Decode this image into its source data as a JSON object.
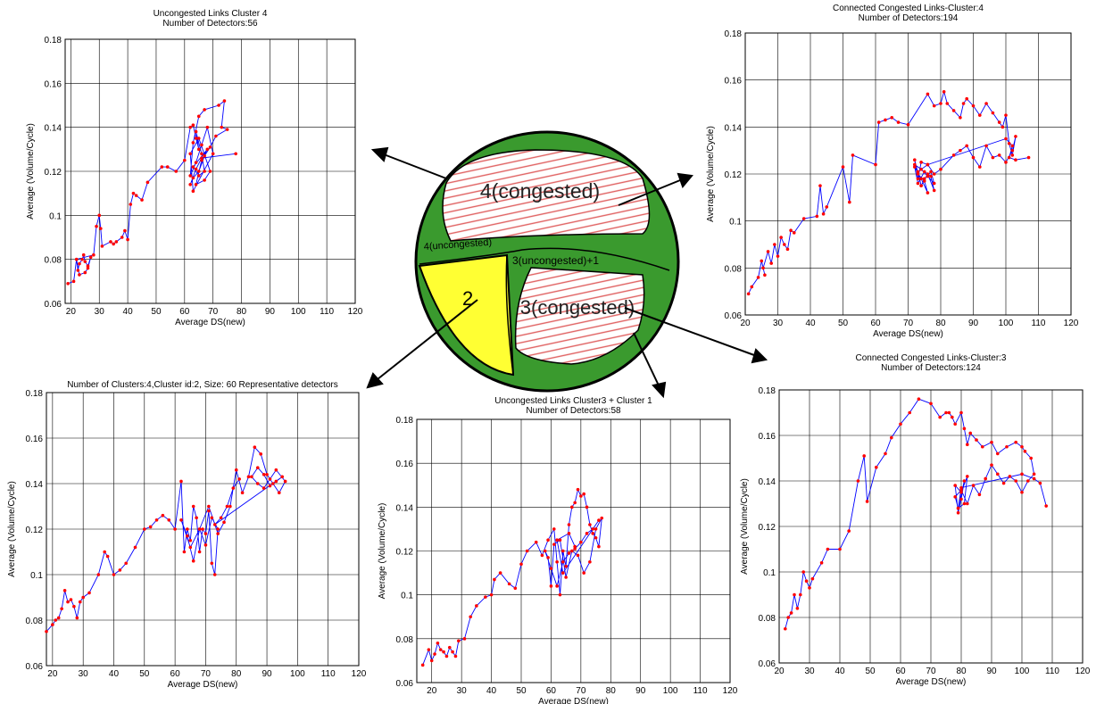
{
  "map": {
    "regions": [
      {
        "label": "4(congested)",
        "color": "#ffffff"
      },
      {
        "label": "4(uncongested)",
        "color": "#3a9a2e"
      },
      {
        "label": "3(uncongested)+1",
        "color": "#3a9a2e"
      },
      {
        "label": "2",
        "color": "#ffff33"
      },
      {
        "label": "3(congested)",
        "color": "#ffffff"
      }
    ],
    "hatch_color": "#e06060"
  },
  "colors": {
    "line": "#0000ff",
    "marker": "#ff0000",
    "grid": "#000000"
  },
  "chart_data": [
    {
      "type": "line",
      "title": "Uncongested Links Cluster 4",
      "subtitle": "Number of Detectors:56",
      "xlabel": "Average DS(new)",
      "ylabel": "Average (Volume/Cycle)",
      "xlim": [
        18,
        120
      ],
      "ylim": [
        0.06,
        0.18
      ],
      "xticks": [
        20,
        30,
        40,
        50,
        60,
        70,
        80,
        90,
        100,
        110,
        120
      ],
      "yticks": [
        0.06,
        0.08,
        0.1,
        0.12,
        0.14,
        0.16,
        0.18
      ],
      "grid": true,
      "x": [
        19,
        21,
        22,
        22.5,
        23,
        24,
        24.5,
        25,
        26,
        27,
        26,
        25,
        23,
        22,
        28,
        29,
        30,
        30.5,
        31,
        34,
        35,
        36,
        38,
        39,
        40,
        41,
        42,
        43,
        45,
        47,
        52,
        54,
        57,
        60,
        62,
        63,
        64,
        65,
        64,
        66,
        67,
        65,
        63,
        68,
        66,
        64,
        67,
        69,
        65,
        62,
        63,
        70,
        68,
        66,
        64,
        62,
        63,
        65,
        67,
        72,
        74,
        73,
        75,
        71,
        69,
        67,
        65,
        63,
        62,
        64,
        66,
        78
      ],
      "y": [
        0.069,
        0.07,
        0.08,
        0.075,
        0.078,
        0.08,
        0.082,
        0.079,
        0.077,
        0.081,
        0.076,
        0.074,
        0.073,
        0.08,
        0.082,
        0.095,
        0.1,
        0.094,
        0.086,
        0.088,
        0.087,
        0.088,
        0.09,
        0.093,
        0.089,
        0.105,
        0.11,
        0.109,
        0.107,
        0.115,
        0.122,
        0.122,
        0.12,
        0.125,
        0.14,
        0.141,
        0.135,
        0.13,
        0.138,
        0.128,
        0.12,
        0.118,
        0.122,
        0.13,
        0.125,
        0.114,
        0.116,
        0.12,
        0.135,
        0.128,
        0.111,
        0.128,
        0.14,
        0.132,
        0.124,
        0.118,
        0.133,
        0.145,
        0.148,
        0.15,
        0.152,
        0.14,
        0.139,
        0.136,
        0.131,
        0.127,
        0.12,
        0.117,
        0.114,
        0.121,
        0.126,
        0.128
      ]
    },
    {
      "type": "line",
      "title": "Connected Congested Links-Cluster:4",
      "subtitle": "Number of Detectors:194",
      "xlabel": "Average DS(new)",
      "ylabel": "Average (Volume/Cycle)",
      "xlim": [
        20,
        120
      ],
      "ylim": [
        0.06,
        0.18
      ],
      "xticks": [
        20,
        30,
        40,
        50,
        60,
        70,
        80,
        90,
        100,
        110,
        120
      ],
      "yticks": [
        0.06,
        0.08,
        0.1,
        0.12,
        0.14,
        0.16,
        0.18
      ],
      "grid": true,
      "x": [
        21,
        22,
        24,
        25,
        26,
        25.5,
        27,
        28,
        29,
        30,
        31,
        32,
        33,
        34,
        35,
        38,
        42,
        43,
        44,
        45,
        50,
        52,
        53,
        60,
        61,
        63,
        65,
        67,
        70,
        76,
        78,
        80,
        81,
        82,
        84,
        86,
        87,
        88,
        90,
        92,
        94,
        96,
        98,
        99,
        100,
        101,
        102,
        103,
        102,
        100,
        98,
        96,
        94,
        92,
        90,
        88,
        86,
        84,
        80,
        78,
        76,
        74,
        73,
        72,
        74,
        76,
        78,
        77,
        75,
        73,
        72,
        74,
        76,
        75,
        73,
        72,
        74,
        76,
        78,
        77,
        75,
        74,
        73,
        76,
        100,
        102,
        101,
        103,
        107
      ],
      "y": [
        0.069,
        0.072,
        0.076,
        0.083,
        0.077,
        0.08,
        0.087,
        0.082,
        0.09,
        0.085,
        0.093,
        0.09,
        0.088,
        0.096,
        0.095,
        0.101,
        0.102,
        0.115,
        0.103,
        0.106,
        0.123,
        0.108,
        0.128,
        0.124,
        0.142,
        0.143,
        0.144,
        0.142,
        0.141,
        0.154,
        0.149,
        0.15,
        0.155,
        0.15,
        0.147,
        0.144,
        0.15,
        0.152,
        0.149,
        0.145,
        0.15,
        0.146,
        0.142,
        0.14,
        0.145,
        0.133,
        0.128,
        0.136,
        0.13,
        0.125,
        0.128,
        0.127,
        0.132,
        0.123,
        0.127,
        0.132,
        0.13,
        0.128,
        0.122,
        0.12,
        0.124,
        0.125,
        0.118,
        0.126,
        0.115,
        0.12,
        0.113,
        0.119,
        0.121,
        0.116,
        0.123,
        0.118,
        0.112,
        0.117,
        0.12,
        0.124,
        0.122,
        0.119,
        0.116,
        0.121,
        0.118,
        0.115,
        0.121,
        0.124,
        0.135,
        0.132,
        0.127,
        0.126,
        0.127
      ]
    },
    {
      "type": "line",
      "title": "Number of Clusters:4,Cluster id:2, Size: 60 Representative detectors",
      "subtitle": "",
      "xlabel": "Average DS(new)",
      "ylabel": "Average (Volume/Cycle)",
      "xlim": [
        18,
        120
      ],
      "ylim": [
        0.06,
        0.18
      ],
      "xticks": [
        20,
        30,
        40,
        50,
        60,
        70,
        80,
        90,
        100,
        110,
        120
      ],
      "yticks": [
        0.06,
        0.08,
        0.1,
        0.12,
        0.14,
        0.16,
        0.18
      ],
      "grid": true,
      "x": [
        18,
        20,
        21,
        22,
        23,
        24,
        25,
        26,
        27,
        28,
        29,
        30,
        32,
        35,
        37,
        38,
        40,
        42,
        44,
        47,
        50,
        52,
        54,
        56,
        58,
        60,
        62,
        63,
        64,
        65,
        66,
        67,
        68,
        69,
        70,
        71,
        72,
        73,
        74,
        72,
        70,
        68,
        66,
        64,
        62,
        65,
        68,
        71,
        74,
        76,
        78,
        80,
        82,
        84,
        86,
        88,
        90,
        92,
        94,
        96,
        93,
        91,
        89,
        87,
        85,
        87,
        89,
        91,
        93,
        95,
        73,
        75,
        77,
        79,
        81
      ],
      "y": [
        0.075,
        0.078,
        0.08,
        0.081,
        0.085,
        0.093,
        0.088,
        0.089,
        0.086,
        0.081,
        0.088,
        0.09,
        0.092,
        0.1,
        0.11,
        0.108,
        0.1,
        0.102,
        0.105,
        0.112,
        0.12,
        0.121,
        0.124,
        0.126,
        0.124,
        0.12,
        0.141,
        0.11,
        0.12,
        0.115,
        0.13,
        0.125,
        0.11,
        0.12,
        0.118,
        0.128,
        0.105,
        0.1,
        0.12,
        0.125,
        0.113,
        0.12,
        0.106,
        0.117,
        0.124,
        0.112,
        0.12,
        0.13,
        0.118,
        0.123,
        0.13,
        0.146,
        0.136,
        0.143,
        0.156,
        0.153,
        0.144,
        0.14,
        0.136,
        0.141,
        0.146,
        0.142,
        0.138,
        0.14,
        0.143,
        0.147,
        0.144,
        0.139,
        0.141,
        0.143,
        0.122,
        0.125,
        0.13,
        0.138,
        0.142
      ]
    },
    {
      "type": "line",
      "title": "Uncongested Links Cluster3 + Cluster 1",
      "subtitle": "Number of Detectors:58",
      "xlabel": "Average DS(new)",
      "ylabel": "Average (Volume/Cycle)",
      "xlim": [
        15,
        120
      ],
      "ylim": [
        0.06,
        0.18
      ],
      "xticks": [
        20,
        30,
        40,
        50,
        60,
        70,
        80,
        90,
        100,
        110,
        120
      ],
      "yticks": [
        0.06,
        0.08,
        0.1,
        0.12,
        0.14,
        0.16,
        0.18
      ],
      "grid": true,
      "x": [
        17,
        19,
        20,
        21,
        22,
        23,
        24,
        25,
        26,
        27,
        28,
        29,
        31,
        33,
        35,
        38,
        40,
        41,
        43,
        46,
        48,
        50,
        52,
        55,
        57,
        59,
        61,
        62,
        63,
        64,
        65,
        66,
        67,
        68,
        69,
        70,
        71,
        72,
        73,
        74,
        75,
        76,
        77,
        75,
        73,
        71,
        69,
        67,
        65,
        63,
        61,
        60,
        59,
        58,
        60,
        62,
        64,
        66,
        68,
        70,
        72,
        74,
        76,
        64,
        62,
        66,
        68
      ],
      "y": [
        0.068,
        0.075,
        0.07,
        0.073,
        0.078,
        0.075,
        0.074,
        0.072,
        0.076,
        0.074,
        0.072,
        0.079,
        0.08,
        0.09,
        0.095,
        0.099,
        0.1,
        0.107,
        0.11,
        0.105,
        0.103,
        0.114,
        0.12,
        0.124,
        0.118,
        0.125,
        0.13,
        0.115,
        0.1,
        0.12,
        0.113,
        0.132,
        0.14,
        0.142,
        0.148,
        0.145,
        0.146,
        0.14,
        0.132,
        0.128,
        0.126,
        0.122,
        0.135,
        0.13,
        0.115,
        0.11,
        0.118,
        0.12,
        0.108,
        0.125,
        0.123,
        0.104,
        0.117,
        0.12,
        0.112,
        0.104,
        0.115,
        0.119,
        0.121,
        0.124,
        0.128,
        0.13,
        0.134,
        0.11,
        0.125,
        0.128,
        0.122
      ]
    },
    {
      "type": "line",
      "title": "Connected Congested Links-Cluster:3",
      "subtitle": "Number of Detectors:124",
      "xlabel": "Average DS(new)",
      "ylabel": "Average (Volume/Cycle)",
      "xlim": [
        20,
        120
      ],
      "ylim": [
        0.06,
        0.18
      ],
      "xticks": [
        20,
        30,
        40,
        50,
        60,
        70,
        80,
        90,
        100,
        110,
        120
      ],
      "yticks": [
        0.06,
        0.08,
        0.1,
        0.12,
        0.14,
        0.16,
        0.18
      ],
      "grid": true,
      "x": [
        22,
        23,
        24,
        25,
        26,
        27,
        28,
        29,
        30,
        31,
        34,
        36,
        40,
        43,
        46,
        48,
        49,
        52,
        55,
        57,
        60,
        63,
        66,
        70,
        73,
        75,
        76,
        77,
        78,
        80,
        81,
        82,
        83,
        85,
        87,
        90,
        92,
        95,
        98,
        100,
        101,
        103,
        104,
        102,
        100,
        98,
        96,
        94,
        92,
        90,
        88,
        86,
        84,
        82,
        80,
        78,
        79,
        81,
        80,
        79,
        78,
        80,
        82,
        81,
        79,
        80,
        100,
        104,
        106,
        108
      ],
      "y": [
        0.075,
        0.08,
        0.082,
        0.09,
        0.084,
        0.09,
        0.1,
        0.096,
        0.093,
        0.097,
        0.104,
        0.11,
        0.11,
        0.118,
        0.14,
        0.151,
        0.131,
        0.146,
        0.152,
        0.159,
        0.165,
        0.17,
        0.176,
        0.174,
        0.168,
        0.17,
        0.17,
        0.168,
        0.165,
        0.17,
        0.163,
        0.156,
        0.161,
        0.158,
        0.155,
        0.157,
        0.152,
        0.155,
        0.157,
        0.155,
        0.153,
        0.15,
        0.143,
        0.14,
        0.135,
        0.14,
        0.142,
        0.139,
        0.143,
        0.147,
        0.141,
        0.134,
        0.138,
        0.13,
        0.136,
        0.133,
        0.128,
        0.14,
        0.132,
        0.126,
        0.138,
        0.135,
        0.142,
        0.13,
        0.128,
        0.137,
        0.143,
        0.141,
        0.139,
        0.129
      ]
    }
  ]
}
